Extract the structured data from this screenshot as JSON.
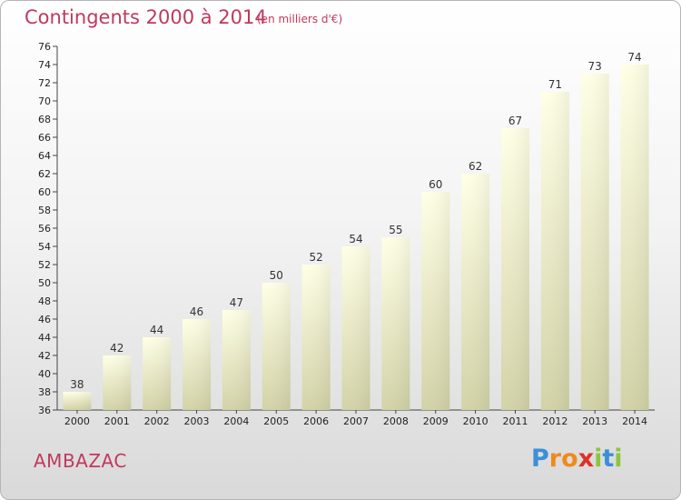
{
  "title": "Contingents 2000 à 2014",
  "subtitle": "(en milliers d'€)",
  "commune": "AMBAZAC",
  "logo": {
    "text": "Proxiti",
    "colors": [
      "#3a8fd8",
      "#f08a1c",
      "#f08a1c",
      "#e0302a",
      "#8cc63f",
      "#3a8fd8",
      "#8cc63f"
    ]
  },
  "colors": {
    "accent": "#c0395e",
    "bar_top": "#ffffe6",
    "bar_bottom": "#d3d3a8"
  },
  "chart_data": {
    "type": "bar",
    "categories": [
      "2000",
      "2001",
      "2002",
      "2003",
      "2004",
      "2005",
      "2006",
      "2007",
      "2008",
      "2009",
      "2010",
      "2011",
      "2012",
      "2013",
      "2014"
    ],
    "values": [
      38,
      42,
      44,
      46,
      47,
      50,
      52,
      54,
      55,
      60,
      62,
      67,
      71,
      73,
      74
    ],
    "ylim": [
      36,
      76
    ],
    "yticks": [
      36,
      38,
      40,
      42,
      44,
      46,
      48,
      50,
      52,
      54,
      56,
      58,
      60,
      62,
      64,
      66,
      68,
      70,
      72,
      74,
      76
    ],
    "grid": false,
    "legend": "none"
  }
}
